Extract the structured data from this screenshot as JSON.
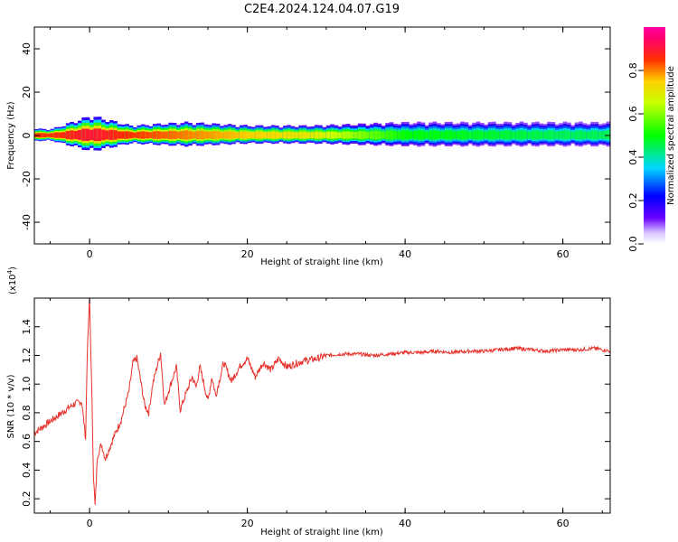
{
  "title": "C2E4.2024.124.04.07.G19",
  "chart_data": [
    {
      "type": "heatmap",
      "name": "spectrogram",
      "xlabel": "Height of straight line (km)",
      "ylabel": "Frequency (Hz)",
      "xlim": [
        -7,
        66
      ],
      "ylim": [
        -50,
        50
      ],
      "xticks": [
        0,
        20,
        40,
        60
      ],
      "yticks": [
        -40,
        -20,
        0,
        20,
        40
      ],
      "colorbar": {
        "label": "Normalized spectral amplitude",
        "range": [
          0,
          1
        ],
        "ticks": [
          0.0,
          0.2,
          0.4,
          0.6,
          0.8
        ],
        "colormap": "rainbow (purple-blue-cyan-green-yellow-red-magenta)"
      },
      "description_points": [
        {
          "height_km": -5,
          "bandwidth_hz": 2,
          "peak_amplitude": 0.85
        },
        {
          "height_km": 0,
          "bandwidth_hz": 6,
          "peak_amplitude": 0.9
        },
        {
          "height_km": 5,
          "bandwidth_hz": 3,
          "peak_amplitude": 0.85
        },
        {
          "height_km": 12,
          "bandwidth_hz": 4,
          "peak_amplitude": 0.8
        },
        {
          "height_km": 20,
          "bandwidth_hz": 3,
          "peak_amplitude": 0.75
        },
        {
          "height_km": 28,
          "bandwidth_hz": 3,
          "peak_amplitude": 0.7
        },
        {
          "height_km": 40,
          "bandwidth_hz": 4,
          "peak_amplitude": 0.5
        },
        {
          "height_km": 60,
          "bandwidth_hz": 4,
          "peak_amplitude": 0.45
        }
      ]
    },
    {
      "type": "line",
      "name": "snr",
      "xlabel": "Height of straight line (km)",
      "ylabel": "SNR (10 * v/v)",
      "y_multiplier": "(x10",
      "y_multiplier_exp": "4",
      "y_multiplier_close": ")",
      "xlim": [
        -7,
        66
      ],
      "ylim": [
        0.1,
        1.6
      ],
      "xticks": [
        0,
        20,
        40,
        60
      ],
      "yticks": [
        0.2,
        0.4,
        0.6,
        0.8,
        1.0,
        1.2,
        1.4
      ],
      "color": "#e8302a",
      "series": [
        {
          "name": "SNR",
          "x": [
            -7,
            -6,
            -5,
            -4,
            -3,
            -2,
            -1,
            -0.5,
            -0.3,
            0,
            0.3,
            0.5,
            0.7,
            1,
            1.5,
            2,
            3,
            4,
            5,
            5.5,
            6,
            7,
            7.5,
            8,
            9,
            9.5,
            10,
            11,
            11.5,
            12,
            13,
            13.5,
            14,
            15,
            15.5,
            16,
            17,
            18,
            19,
            20,
            21,
            22,
            23,
            24,
            25,
            26,
            27,
            28,
            29,
            30,
            32,
            34,
            36,
            38,
            40,
            42,
            44,
            46,
            48,
            50,
            52,
            54,
            56,
            58,
            60,
            62,
            64,
            66
          ],
          "y": [
            0.66,
            0.7,
            0.74,
            0.78,
            0.82,
            0.86,
            0.88,
            0.62,
            1.2,
            1.6,
            0.9,
            0.35,
            0.15,
            0.5,
            0.58,
            0.48,
            0.62,
            0.75,
            0.95,
            1.15,
            1.18,
            0.85,
            0.8,
            1.0,
            1.22,
            0.85,
            0.95,
            1.12,
            0.82,
            0.9,
            1.05,
            0.98,
            1.12,
            0.88,
            1.05,
            0.92,
            1.15,
            1.02,
            1.12,
            1.18,
            1.05,
            1.15,
            1.1,
            1.18,
            1.12,
            1.14,
            1.16,
            1.17,
            1.18,
            1.2,
            1.21,
            1.21,
            1.2,
            1.21,
            1.22,
            1.22,
            1.23,
            1.22,
            1.23,
            1.23,
            1.24,
            1.25,
            1.24,
            1.23,
            1.24,
            1.24,
            1.25,
            1.23
          ]
        }
      ]
    }
  ]
}
